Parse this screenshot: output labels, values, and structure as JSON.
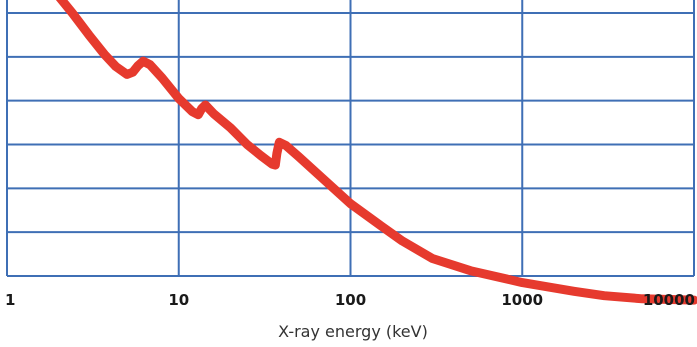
{
  "chart_data": {
    "type": "line",
    "title": "",
    "xlabel": "X-ray energy (keV)",
    "ylabel": "",
    "x_scale": "log",
    "xlim": [
      1,
      10000
    ],
    "x_ticks": [
      1,
      10,
      100,
      1000,
      10000
    ],
    "x_tick_labels": [
      "1",
      "10",
      "100",
      "1000",
      "10000"
    ],
    "y_tick_labels_shown": false,
    "y_gridlines": 7,
    "grid": true,
    "series": [
      {
        "color": "#e63a2e",
        "points": [
          [
            1,
            6.92
          ],
          [
            1.3,
            6.75
          ],
          [
            1.6,
            6.6
          ],
          [
            2,
            6.38
          ],
          [
            2.4,
            6.0
          ],
          [
            3,
            5.5
          ],
          [
            3.7,
            5.05
          ],
          [
            4.3,
            4.78
          ],
          [
            5,
            4.6
          ],
          [
            5.4,
            4.65
          ],
          [
            5.8,
            4.8
          ],
          [
            6.2,
            4.9
          ],
          [
            6.8,
            4.82
          ],
          [
            8,
            4.52
          ],
          [
            10,
            4.05
          ],
          [
            12,
            3.75
          ],
          [
            13,
            3.68
          ],
          [
            13.6,
            3.82
          ],
          [
            14.3,
            3.9
          ],
          [
            16,
            3.7
          ],
          [
            20,
            3.38
          ],
          [
            25,
            3.0
          ],
          [
            30,
            2.75
          ],
          [
            35,
            2.55
          ],
          [
            36.5,
            2.53
          ],
          [
            37.3,
            2.8
          ],
          [
            38.5,
            3.05
          ],
          [
            42,
            2.98
          ],
          [
            50,
            2.72
          ],
          [
            70,
            2.2
          ],
          [
            100,
            1.65
          ],
          [
            150,
            1.15
          ],
          [
            200,
            0.8
          ],
          [
            300,
            0.4
          ],
          [
            500,
            0.12
          ],
          [
            1000,
            -0.15
          ],
          [
            2000,
            -0.35
          ],
          [
            3000,
            -0.45
          ],
          [
            5000,
            -0.52
          ],
          [
            10000,
            -0.55
          ]
        ]
      }
    ]
  }
}
